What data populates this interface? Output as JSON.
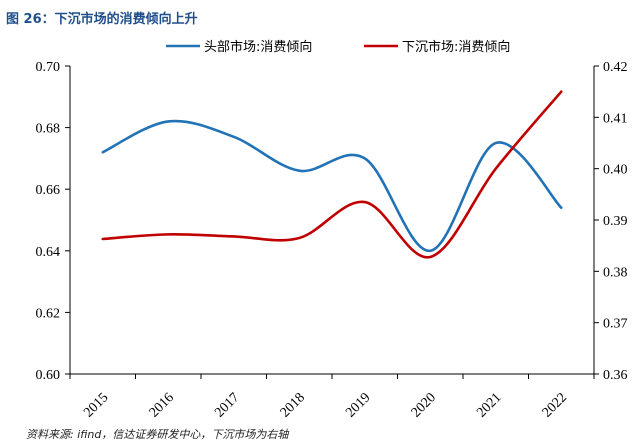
{
  "figure_title": "图 26：下沉市场的消费倾向上升",
  "source_note": "资料来源: ifind，信达证券研发中心，下沉市场为右轴",
  "chart_data": {
    "type": "line",
    "categories": [
      "2015",
      "2016",
      "2017",
      "2018",
      "2019",
      "2020",
      "2021",
      "2022"
    ],
    "series": [
      {
        "name": "头部市场:消费倾向",
        "axis": "left",
        "color": "#2273b6",
        "values": [
          0.672,
          0.682,
          0.677,
          0.666,
          0.67,
          0.64,
          0.675,
          0.654
        ]
      },
      {
        "name": "下沉市场:消费倾向",
        "axis": "right",
        "color": "#c00000",
        "values": [
          0.3863,
          0.3872,
          0.3868,
          0.3865,
          0.3935,
          0.3828,
          0.4,
          0.415
        ]
      }
    ],
    "y_left": {
      "lim": [
        0.6,
        0.7
      ],
      "ticks": [
        "0.60",
        "0.62",
        "0.64",
        "0.66",
        "0.68",
        "0.70"
      ]
    },
    "y_right": {
      "lim": [
        0.36,
        0.42
      ],
      "ticks": [
        "0.36",
        "0.37",
        "0.38",
        "0.39",
        "0.40",
        "0.41",
        "0.42"
      ]
    },
    "legend_position": "top",
    "grid": false
  }
}
